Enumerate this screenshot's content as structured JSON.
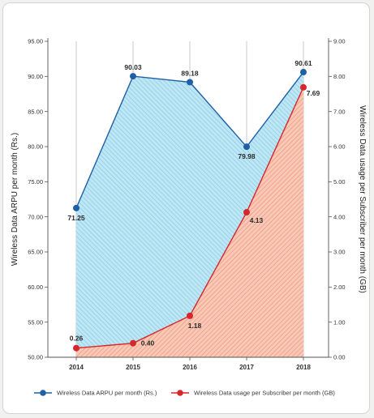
{
  "chart_data": {
    "type": "area",
    "categories": [
      "2014",
      "2015",
      "2016",
      "2017",
      "2018"
    ],
    "series": [
      {
        "name": "Wireless Data ARPU per month (Rs.)",
        "axis": "left",
        "values": [
          71.25,
          90.03,
          89.18,
          79.98,
          90.61
        ],
        "labels": [
          "71.25",
          "90.03",
          "89.18",
          "79.98",
          "90.61"
        ],
        "color": "#1e5fa6",
        "fill_color": "#a9dcef"
      },
      {
        "name": "Wireless Data usage per Subscriber per month (GB)",
        "axis": "right",
        "values": [
          0.26,
          0.4,
          1.18,
          4.13,
          7.69
        ],
        "labels": [
          "0.26",
          "0.40",
          "1.18",
          "4.13",
          "7.69"
        ],
        "color": "#d7262c",
        "fill_color": "#f4a58a"
      }
    ],
    "y_left": {
      "label": "Wireless Data ARPU per month (Rs.)",
      "range": [
        50,
        95
      ],
      "ticks": [
        "50.00",
        "55.00",
        "60.00",
        "65.00",
        "70.00",
        "75.00",
        "80.00",
        "85.00",
        "90.00",
        "95.00"
      ]
    },
    "y_right": {
      "label": "Wireless Data usage per Subscriber per month (GB)",
      "range": [
        0,
        9
      ],
      "ticks": [
        "0.00",
        "1.00",
        "2.00",
        "3.00",
        "4.00",
        "5.00",
        "6.00",
        "7.00",
        "8.00",
        "9.00"
      ]
    },
    "grid": "vertical",
    "legend_position": "bottom"
  }
}
